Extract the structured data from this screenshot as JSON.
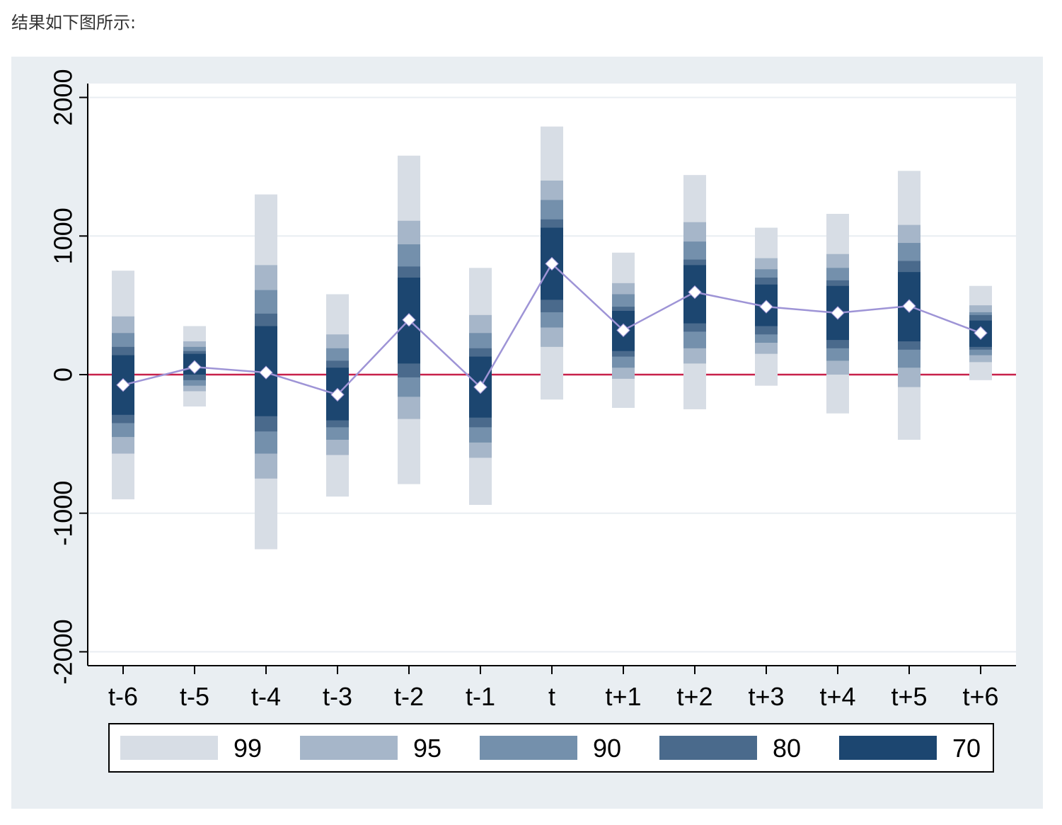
{
  "intro_text": "结果如下图所示:",
  "chart_data": {
    "type": "bar",
    "categories": [
      "t-6",
      "t-5",
      "t-4",
      "t-3",
      "t-2",
      "t-1",
      "t",
      "t+1",
      "t+2",
      "t+3",
      "t+4",
      "t+5",
      "t+6"
    ],
    "point_estimates": [
      -75,
      55,
      15,
      -145,
      395,
      -90,
      800,
      320,
      595,
      490,
      445,
      495,
      300
    ],
    "confidence_levels": [
      "99",
      "95",
      "90",
      "80",
      "70"
    ],
    "intervals": {
      "99": [
        [
          -900,
          750
        ],
        [
          -230,
          350
        ],
        [
          -1260,
          1300
        ],
        [
          -880,
          580
        ],
        [
          -790,
          1580
        ],
        [
          -940,
          770
        ],
        [
          -180,
          1790
        ],
        [
          -240,
          880
        ],
        [
          -250,
          1440
        ],
        [
          -80,
          1060
        ],
        [
          -280,
          1160
        ],
        [
          -470,
          1470
        ],
        [
          -40,
          640
        ]
      ],
      "95": [
        [
          -570,
          420
        ],
        [
          -120,
          240
        ],
        [
          -750,
          790
        ],
        [
          -580,
          290
        ],
        [
          -320,
          1110
        ],
        [
          -600,
          430
        ],
        [
          200,
          1400
        ],
        [
          -30,
          660
        ],
        [
          80,
          1100
        ],
        [
          150,
          840
        ],
        [
          0,
          870
        ],
        [
          -90,
          1080
        ],
        [
          90,
          500
        ]
      ],
      "90": [
        [
          -450,
          300
        ],
        [
          -80,
          200
        ],
        [
          -570,
          610
        ],
        [
          -470,
          190
        ],
        [
          -160,
          940
        ],
        [
          -490,
          300
        ],
        [
          340,
          1260
        ],
        [
          50,
          580
        ],
        [
          190,
          960
        ],
        [
          230,
          760
        ],
        [
          100,
          770
        ],
        [
          50,
          950
        ],
        [
          140,
          450
        ]
      ],
      "80": [
        [
          -350,
          200
        ],
        [
          -40,
          170
        ],
        [
          -410,
          440
        ],
        [
          -380,
          100
        ],
        [
          -20,
          780
        ],
        [
          -380,
          190
        ],
        [
          450,
          1120
        ],
        [
          130,
          490
        ],
        [
          310,
          830
        ],
        [
          290,
          700
        ],
        [
          190,
          680
        ],
        [
          180,
          820
        ],
        [
          180,
          430
        ]
      ],
      "70": [
        [
          -290,
          140
        ],
        [
          0,
          150
        ],
        [
          -300,
          350
        ],
        [
          -330,
          50
        ],
        [
          80,
          700
        ],
        [
          -310,
          130
        ],
        [
          540,
          1060
        ],
        [
          170,
          460
        ],
        [
          370,
          790
        ],
        [
          350,
          650
        ],
        [
          250,
          640
        ],
        [
          240,
          740
        ],
        [
          200,
          390
        ]
      ]
    },
    "ylim": [
      -2100,
      2100
    ],
    "yticks": [
      -2000,
      -1000,
      0,
      1000,
      2000
    ],
    "reference_line_y": 0,
    "grid": true,
    "legend_position": "bottom",
    "colors": {
      "99": "#d7dde5",
      "95": "#a6b6c9",
      "90": "#7490ac",
      "80": "#4a6a8c",
      "70": "#1c4670",
      "point_marker": "#ffffff",
      "point_line": "#9e94d6",
      "zero_line": "#c8204a",
      "outer_background": "#e9eef2",
      "plot_background": "#ffffff",
      "gridline": "#e9eef2"
    }
  }
}
